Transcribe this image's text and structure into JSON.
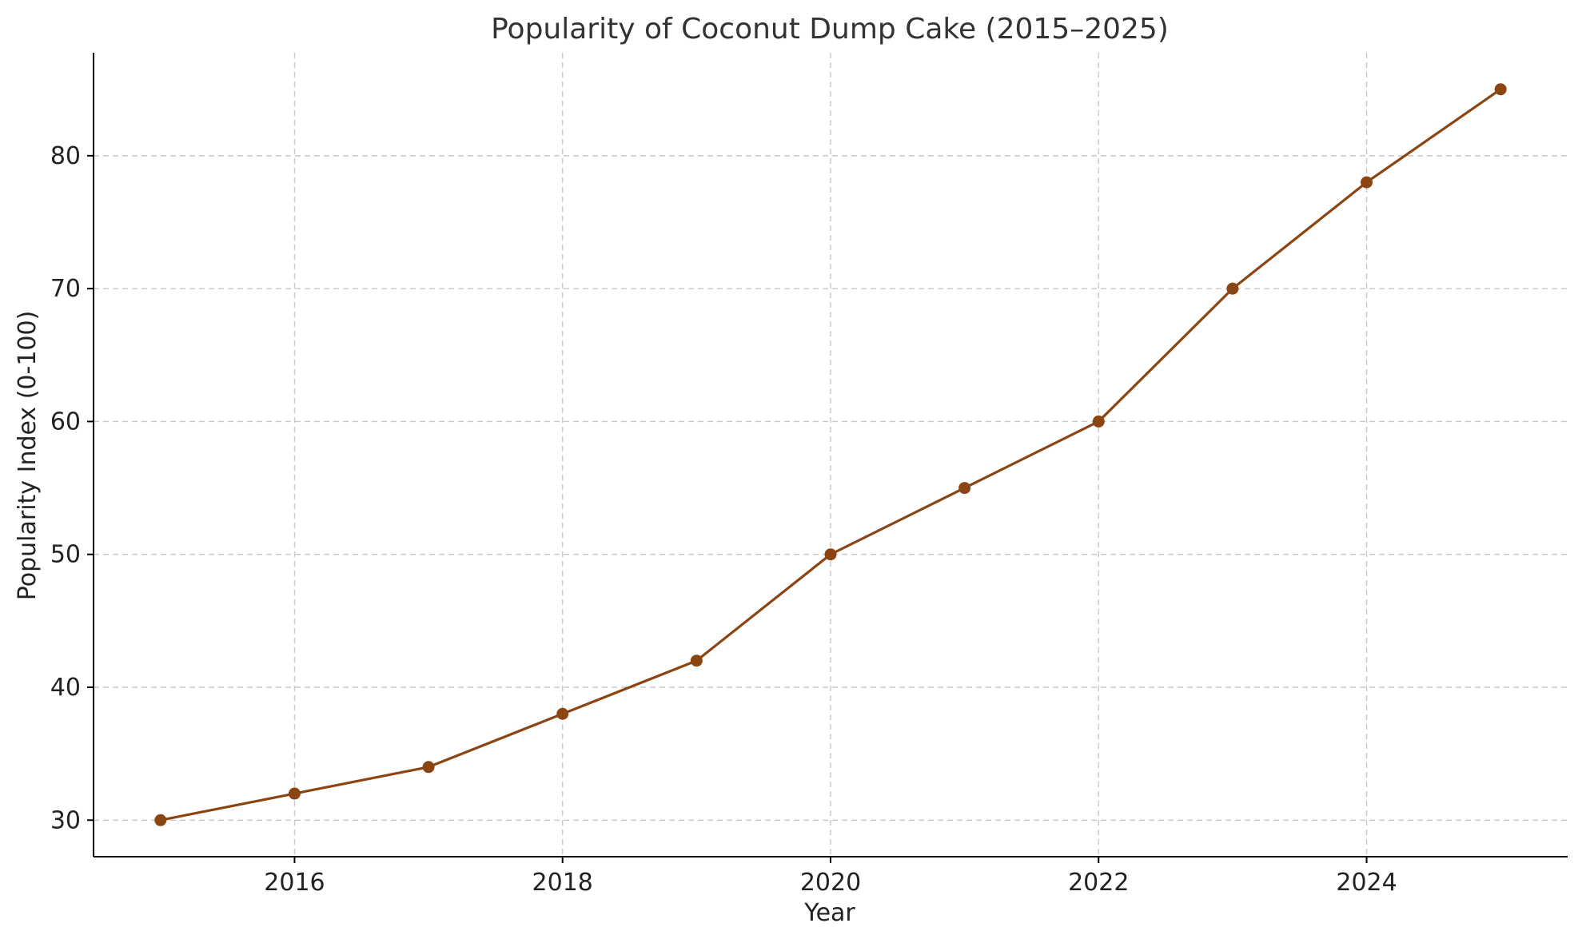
{
  "chart_data": {
    "type": "line",
    "title": "Popularity of Coconut Dump Cake (2015–2025)",
    "xlabel": "Year",
    "ylabel": "Popularity Index (0-100)",
    "x": [
      2015,
      2016,
      2017,
      2018,
      2019,
      2020,
      2021,
      2022,
      2023,
      2024,
      2025
    ],
    "series": [
      {
        "values": [
          30,
          32,
          34,
          38,
          42,
          50,
          55,
          60,
          70,
          78,
          85
        ],
        "color": "#8B4513"
      }
    ],
    "xlim": [
      2014.5,
      2025.5
    ],
    "ylim": [
      27.25,
      87.75
    ],
    "xticks": [
      2016,
      2018,
      2020,
      2022,
      2024
    ],
    "yticks": [
      30,
      40,
      50,
      60,
      70,
      80
    ],
    "grid": true,
    "legend": "none"
  }
}
